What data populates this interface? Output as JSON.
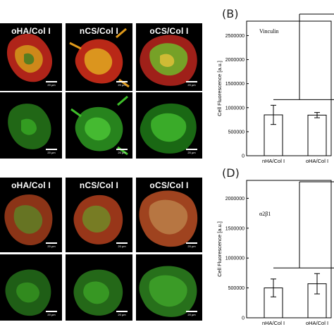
{
  "figure": {
    "top": {
      "labels": [
        "oHA/Col I",
        "nCS/Col I",
        "oCS/Col I"
      ],
      "scale_bar": "20 µm"
    },
    "bottom": {
      "labels": [
        "oHA/Col I",
        "nCS/Col I",
        "oCS/Col I"
      ],
      "scale_bar": "20 µm"
    }
  },
  "colors": {
    "red_channel": "#c0281a",
    "green_channel": "#3fbf2a",
    "background": "#000000",
    "axis": "#000000"
  },
  "chart_data": [
    {
      "panel": "(B)",
      "type": "bar",
      "annotation": "Vinculin",
      "ylabel": "Cell Fluorescence [a.u.]",
      "categories": [
        "nHA/Col I",
        "oHA/Col I"
      ],
      "values": [
        850000,
        845000
      ],
      "errors": [
        200000,
        55000
      ],
      "ylim": [
        0,
        2800000
      ],
      "yticks": [
        0,
        500000,
        1000000,
        1500000,
        2000000,
        2500000
      ],
      "ytick_labels": [
        "0",
        "500000",
        "1000000",
        "1500000",
        "2000000",
        "2500000"
      ]
    },
    {
      "panel": "(D)",
      "type": "bar",
      "annotation": "α2β1",
      "ylabel": "Cell Fluorescence [a.u.]",
      "categories": [
        "nHA/Col I",
        "oHA/Col I"
      ],
      "values": [
        500000,
        570000
      ],
      "errors": [
        150000,
        170000
      ],
      "ylim": [
        0,
        2300000
      ],
      "yticks": [
        0,
        500000,
        1000000,
        1500000,
        2000000
      ],
      "ytick_labels": [
        "0",
        "500000",
        "1000000",
        "1500000",
        "2000000"
      ]
    }
  ]
}
